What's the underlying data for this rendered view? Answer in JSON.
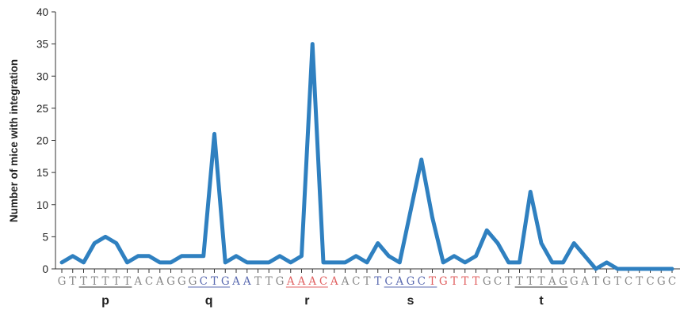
{
  "chart_data": {
    "type": "line",
    "ylabel": "Number of mice with integration",
    "ylim": [
      0,
      40
    ],
    "yticks": [
      0,
      5,
      10,
      15,
      20,
      25,
      30,
      35,
      40
    ],
    "line_color": "#2f80c0",
    "sequence": "GTTTTTTACAGGGCTGAATTGAAACAACTTCAGCTGTTTGCTTTTAGGATGTCTCGC",
    "base_colors": {
      "default": "#888888",
      "blue": "#5a6ab0",
      "red": "#e06060"
    },
    "blue_positions": [
      13,
      14,
      15,
      16,
      17,
      29,
      30,
      31,
      32,
      33
    ],
    "red_positions": [
      21,
      22,
      23,
      24,
      25,
      34,
      35,
      36,
      37,
      38
    ],
    "values": [
      1,
      2,
      1,
      4,
      5,
      4,
      1,
      2,
      2,
      1,
      1,
      2,
      2,
      2,
      21,
      1,
      2,
      1,
      1,
      1,
      2,
      1,
      2,
      35,
      1,
      1,
      1,
      2,
      1,
      4,
      2,
      1,
      9,
      17,
      8,
      1,
      2,
      1,
      2,
      6,
      4,
      1,
      1,
      12,
      4,
      1,
      1,
      4,
      2,
      0,
      1,
      0,
      0,
      0,
      0,
      0,
      0
    ],
    "segments": [
      {
        "label": "p",
        "start": 2,
        "end": 6
      },
      {
        "label": "q",
        "start": 12,
        "end": 15
      },
      {
        "label": "r",
        "start": 21,
        "end": 24
      },
      {
        "label": "s",
        "start": 30,
        "end": 34
      },
      {
        "label": "t",
        "start": 42,
        "end": 46
      }
    ]
  }
}
